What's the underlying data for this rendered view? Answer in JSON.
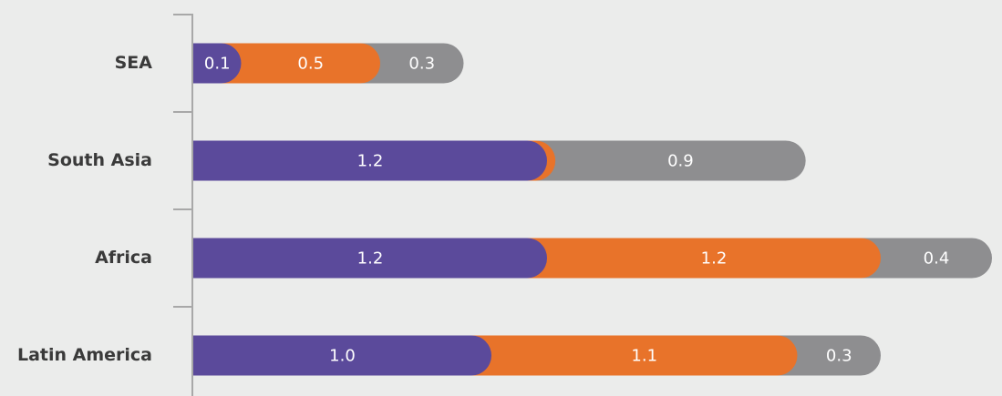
{
  "chart_data": {
    "type": "stacked-bar-horizontal",
    "categories": [
      "SEA",
      "South Asia",
      "Africa",
      "Latin America"
    ],
    "series": [
      {
        "color": "#5b4a9b",
        "values": [
          0.1,
          1.2,
          1.2,
          1.0
        ],
        "value_labels": [
          "0.1",
          "1.2",
          "1.2",
          "1.0"
        ]
      },
      {
        "color": "#e8732a",
        "values": [
          0.5,
          0.03,
          1.2,
          1.1
        ],
        "value_labels": [
          "0.5",
          null,
          "1.2",
          "1.1"
        ]
      },
      {
        "color": "#8e8e90",
        "values": [
          0.3,
          0.9,
          0.4,
          0.3
        ],
        "value_labels": [
          "0.3",
          "0.9",
          "0.4",
          "0.3"
        ]
      }
    ]
  }
}
